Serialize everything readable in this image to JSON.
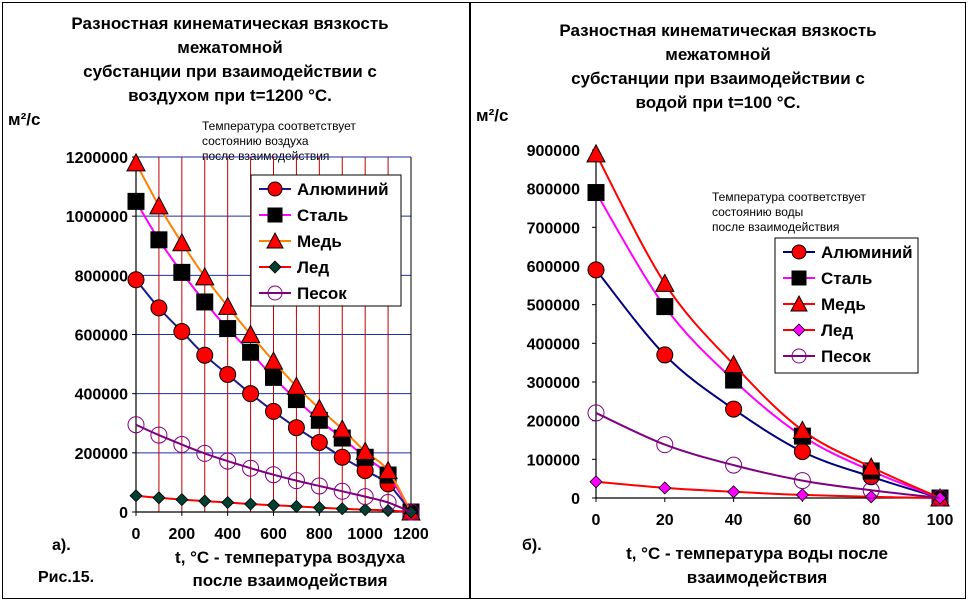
{
  "charts": {
    "a": {
      "title_lines": [
        "Разностная кинематическая вязкость",
        "межатомной",
        "субстанции при взаимодействии с",
        "воздухом при t=1200 °С."
      ],
      "ylabel": "м²/с",
      "note_lines": [
        "Температура  соответствует",
        "состоянию воздуха",
        "после взаимодействия"
      ],
      "xlabel_lines": [
        "t, °С - температура воздуха",
        "после взаимодействия"
      ],
      "panel_tag": "а).",
      "figure_caption": "Рис.15."
    },
    "b": {
      "title_lines": [
        "Разностная кинематическая вязкость",
        "межатомной",
        "субстанции при взаимодействии с",
        "водой при t=100 °С."
      ],
      "ylabel": "м²/с",
      "note_lines": [
        "Температура  соответствует",
        "состоянию воды",
        "после взаимодействия"
      ],
      "xlabel_lines": [
        "t, °С - температура воды  после",
        "взаимодействия"
      ],
      "panel_tag": "б)."
    }
  },
  "chart_data": [
    {
      "type": "line",
      "title": "Разностная кинематическая вязкость межатомной субстанции при взаимодействии с воздухом при t=1200 °С.",
      "xlabel": "t, °С - температура воздуха после взаимодействия",
      "ylabel": "м²/с",
      "x": [
        0,
        100,
        200,
        300,
        400,
        500,
        600,
        700,
        800,
        900,
        1000,
        1100,
        1200
      ],
      "xticks": [
        0,
        200,
        400,
        600,
        800,
        1000,
        1200
      ],
      "xlim": [
        0,
        1200
      ],
      "ylim": [
        0,
        1200000
      ],
      "yticks": [
        0,
        200000,
        400000,
        600000,
        800000,
        1000000,
        1200000
      ],
      "grid": "vertical red lines at every 100, horizontal blue lines at every 200000",
      "legend_position": "top-right",
      "series": [
        {
          "name": "Алюминий",
          "color": "#1a1a8c",
          "marker_color": "#ff0000",
          "marker": "circle",
          "values": [
            785000,
            690000,
            610000,
            530000,
            465000,
            400000,
            340000,
            285000,
            235000,
            185000,
            140000,
            95000,
            0
          ]
        },
        {
          "name": "Сталь",
          "color": "#ff00ff",
          "marker_color": "#000000",
          "marker": "square",
          "values": [
            1050000,
            920000,
            810000,
            710000,
            620000,
            540000,
            455000,
            380000,
            310000,
            250000,
            185000,
            125000,
            0
          ]
        },
        {
          "name": "Медь",
          "color": "#ff8000",
          "marker_color": "#ff0000",
          "marker": "triangle",
          "values": [
            1180000,
            1035000,
            910000,
            795000,
            695000,
            600000,
            510000,
            425000,
            350000,
            280000,
            205000,
            140000,
            0
          ]
        },
        {
          "name": "Лед",
          "color": "#ff0000",
          "marker_color": "#004030",
          "marker": "diamond",
          "values": [
            55000,
            48000,
            42000,
            37000,
            32000,
            27000,
            23000,
            19000,
            15000,
            11000,
            8000,
            5000,
            0
          ]
        },
        {
          "name": "Песок",
          "color": "#800080",
          "marker_color": "#800080",
          "marker": "open-circle",
          "values": [
            295000,
            260000,
            228000,
            198000,
            172000,
            148000,
            126000,
            106000,
            88000,
            70000,
            52000,
            32000,
            0
          ]
        }
      ]
    },
    {
      "type": "line",
      "title": "Разностная кинематическая вязкость межатомной субстанции при взаимодействии с водой при t=100 °С.",
      "xlabel": "t, °С - температура воды  после взаимодействия",
      "ylabel": "м²/с",
      "x": [
        0,
        20,
        40,
        60,
        80,
        100
      ],
      "xticks": [
        0,
        20,
        40,
        60,
        80,
        100
      ],
      "xlim": [
        0,
        100
      ],
      "ylim": [
        0,
        900000
      ],
      "yticks": [
        0,
        100000,
        200000,
        300000,
        400000,
        500000,
        600000,
        700000,
        800000,
        900000
      ],
      "grid": "off",
      "legend_position": "center-right",
      "series": [
        {
          "name": "Алюминий",
          "color": "#000080",
          "marker_color": "#ff0000",
          "marker": "circle",
          "values": [
            590000,
            370000,
            230000,
            120000,
            55000,
            0
          ]
        },
        {
          "name": "Сталь",
          "color": "#ff00ff",
          "marker_color": "#000000",
          "marker": "square",
          "values": [
            790000,
            495000,
            305000,
            160000,
            70000,
            0
          ]
        },
        {
          "name": "Медь",
          "color": "#ff0000",
          "marker_color": "#ff0000",
          "marker": "triangle",
          "values": [
            890000,
            555000,
            345000,
            175000,
            80000,
            0
          ]
        },
        {
          "name": "Лед",
          "color": "#ff0000",
          "marker_color": "#ff00ff",
          "marker": "diamond",
          "values": [
            42000,
            26000,
            16000,
            8000,
            3000,
            0
          ]
        },
        {
          "name": "Песок",
          "color": "#800080",
          "marker_color": "#800080",
          "marker": "open-circle",
          "values": [
            220000,
            138000,
            85000,
            45000,
            20000,
            0
          ]
        }
      ]
    }
  ]
}
